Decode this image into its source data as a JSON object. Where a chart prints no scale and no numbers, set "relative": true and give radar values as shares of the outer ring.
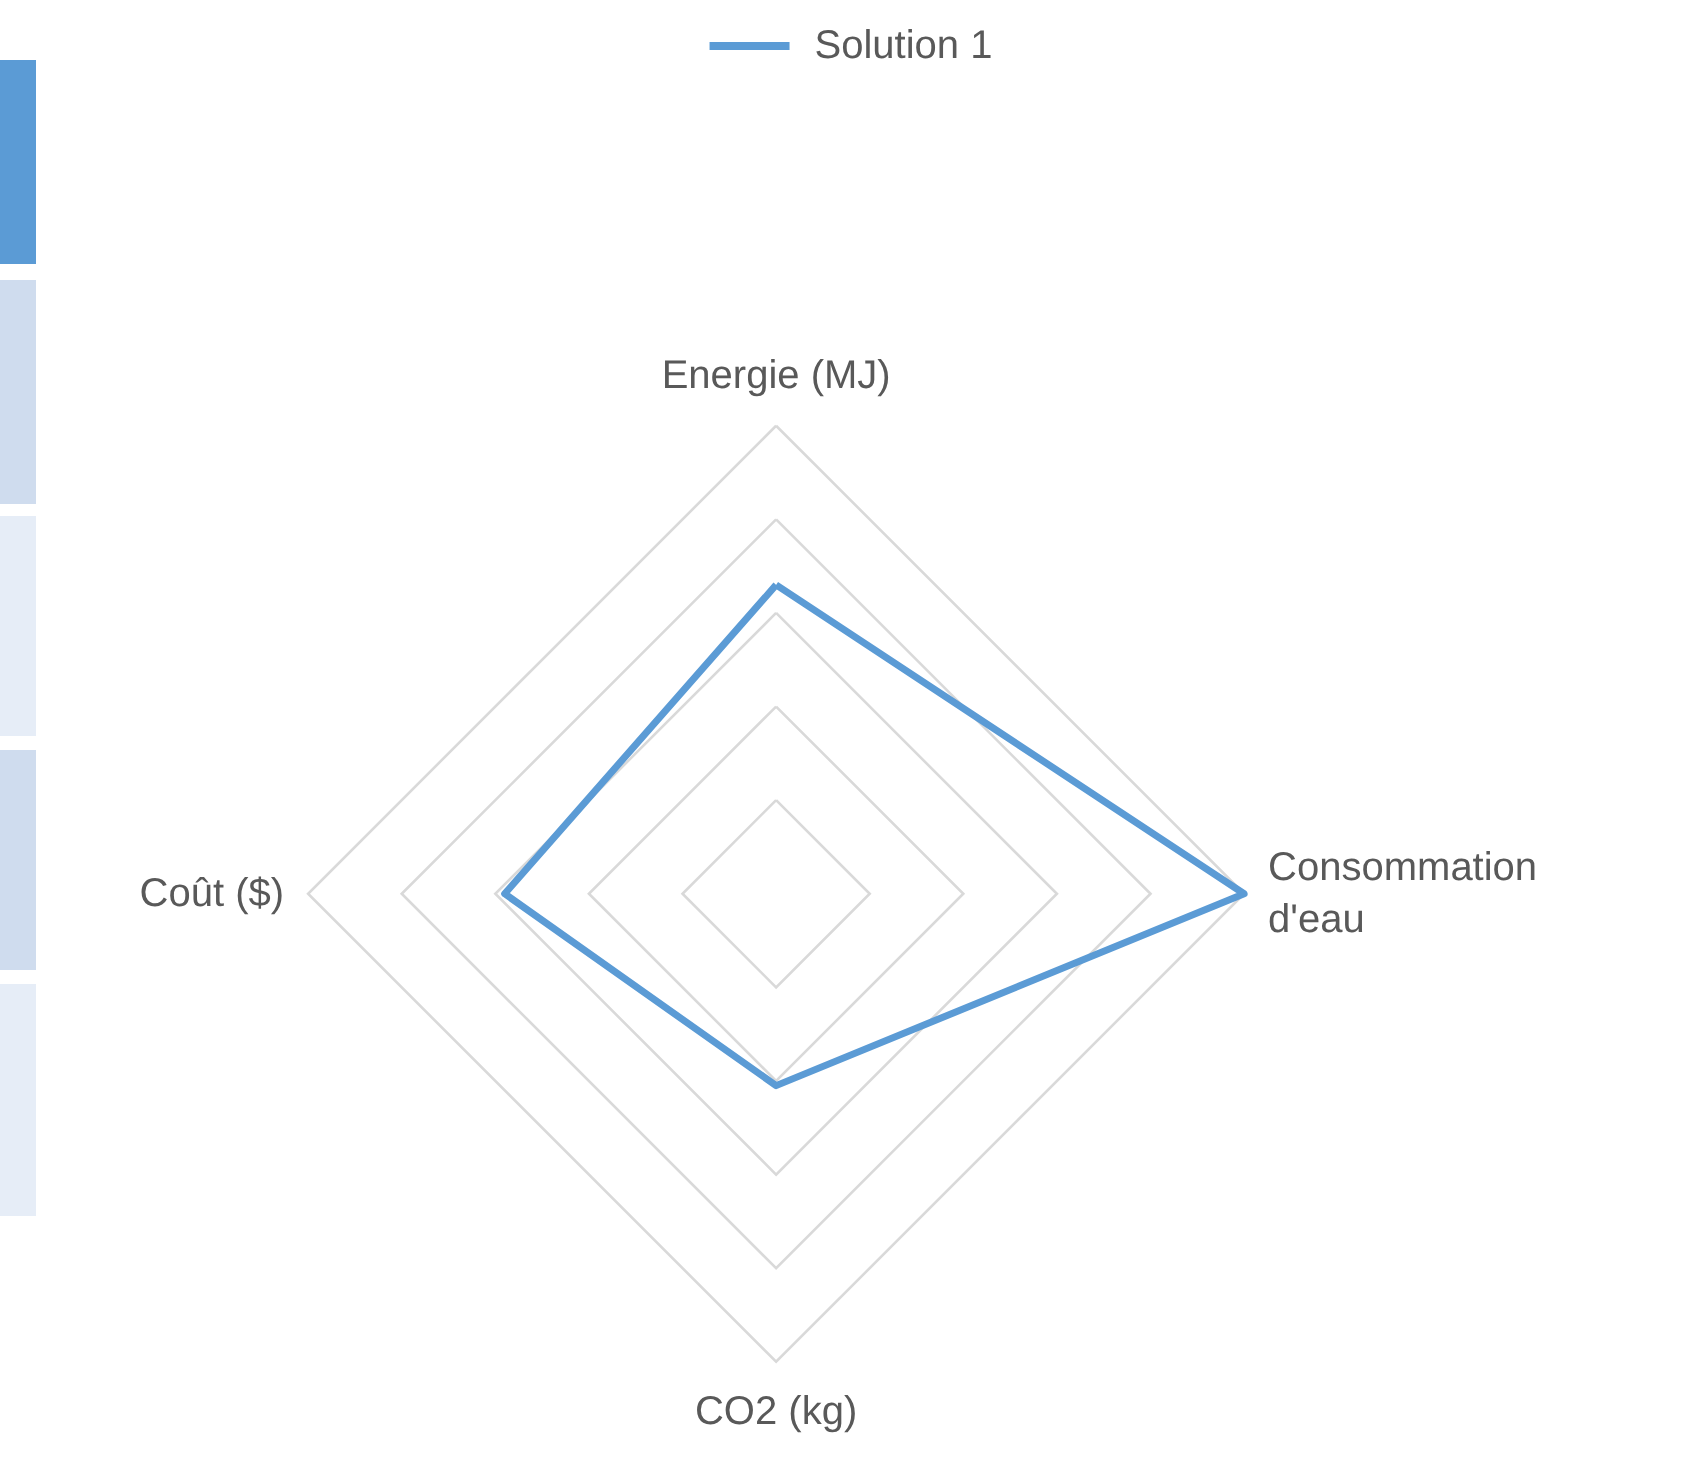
{
  "chart_data": {
    "type": "radar",
    "relative": true,
    "categories": [
      "Energie (MJ)",
      "Consommation d'eau",
      "CO2 (kg)",
      "Coût ($)"
    ],
    "series": [
      {
        "name": "Solution 1",
        "color": "#5b9bd5",
        "values": [
          0.66,
          1.0,
          0.41,
          0.58
        ]
      }
    ],
    "legend": "top",
    "marker": "none",
    "line_style": "solid"
  }
}
